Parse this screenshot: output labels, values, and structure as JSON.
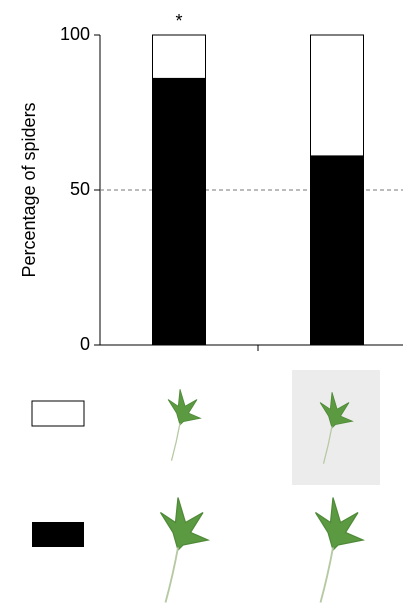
{
  "chart_data": {
    "type": "stacked-bar",
    "y_label": "Percentage of spiders",
    "categories": [
      null,
      null
    ],
    "series": [
      {
        "color": "#000000",
        "values": [
          86,
          61
        ]
      },
      {
        "color": "#ffffff",
        "values": [
          14,
          39
        ]
      }
    ],
    "ylim": [
      0,
      100
    ],
    "yticks": [
      0,
      50,
      100
    ],
    "reference_line": 50,
    "annotations": [
      "*"
    ]
  }
}
